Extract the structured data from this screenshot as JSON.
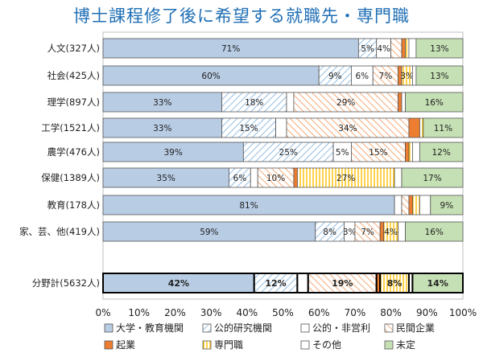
{
  "chart_data": {
    "type": "bar",
    "stacked": true,
    "orientation": "horizontal",
    "title": "博士課程修了後に希望する就職先・専門職",
    "categories": [
      "人文(327人)",
      "社会(425人)",
      "理学(897人)",
      "工学(1521人)",
      "農学(476人)",
      "保健(1389人)",
      "教育(178人)",
      "家、芸、他(419人)",
      "分野計(5632人)"
    ],
    "series": [
      {
        "name": "大学・教育機関",
        "color": "#b8cce4",
        "pattern": "solid",
        "values": [
          71,
          60,
          33,
          33,
          39,
          35,
          81,
          59,
          42
        ],
        "labels": [
          "71%",
          "60%",
          "33%",
          "33%",
          "39%",
          "35%",
          "81%",
          "59%",
          "42%"
        ]
      },
      {
        "name": "公的研究機関",
        "color": "#9dc3e6",
        "pattern": "diag",
        "values": [
          5,
          9,
          18,
          15,
          25,
          6,
          0,
          8,
          12
        ],
        "labels": [
          "5%",
          "9%",
          "18%",
          "15%",
          "25%",
          "6%",
          "",
          "8%",
          "12%"
        ]
      },
      {
        "name": "公的・非営利",
        "color": "#ffffff",
        "pattern": "white",
        "values": [
          4,
          6,
          2,
          3,
          5,
          2,
          2,
          3,
          3
        ],
        "labels": [
          "4%",
          "6%",
          "",
          "",
          "5%",
          "",
          "",
          "3%",
          ""
        ]
      },
      {
        "name": "民間企業",
        "color": "#f4b183",
        "pattern": "diag",
        "values": [
          3,
          7,
          29,
          34,
          15,
          10,
          2,
          7,
          19
        ],
        "labels": [
          "",
          "7%",
          "29%",
          "34%",
          "15%",
          "10%",
          "",
          "7%",
          "19%"
        ]
      },
      {
        "name": "起業",
        "color": "#ed7d31",
        "pattern": "solid",
        "values": [
          1,
          1,
          1,
          3,
          1,
          1,
          1,
          1,
          1
        ],
        "labels": [
          "",
          "",
          "",
          "",
          "",
          "",
          "",
          "",
          ""
        ]
      },
      {
        "name": "専門職",
        "color": "#ffd966",
        "pattern": "vert",
        "values": [
          1,
          3,
          0,
          1,
          1,
          27,
          2,
          4,
          8
        ],
        "labels": [
          "",
          "3%",
          "",
          "",
          "",
          "27%",
          "",
          "4%",
          "8%"
        ]
      },
      {
        "name": "その他",
        "color": "#ffffff",
        "pattern": "white",
        "values": [
          2,
          1,
          1,
          0,
          2,
          2,
          3,
          2,
          1
        ],
        "labels": [
          "",
          "",
          "",
          "",
          "",
          "",
          "",
          "",
          ""
        ]
      },
      {
        "name": "未定",
        "color": "#c5e0b4",
        "pattern": "solid",
        "values": [
          13,
          13,
          16,
          11,
          12,
          17,
          9,
          16,
          14
        ],
        "labels": [
          "13%",
          "13%",
          "16%",
          "11%",
          "12%",
          "17%",
          "9%",
          "16%",
          "14%"
        ]
      }
    ],
    "xlim": [
      0,
      100
    ],
    "x_ticks": [
      "0%",
      "10%",
      "20%",
      "30%",
      "40%",
      "50%",
      "60%",
      "70%",
      "80%",
      "90%",
      "100%"
    ],
    "legend": "bottom",
    "grid": false,
    "highlight_category": "分野計(5632人)"
  }
}
